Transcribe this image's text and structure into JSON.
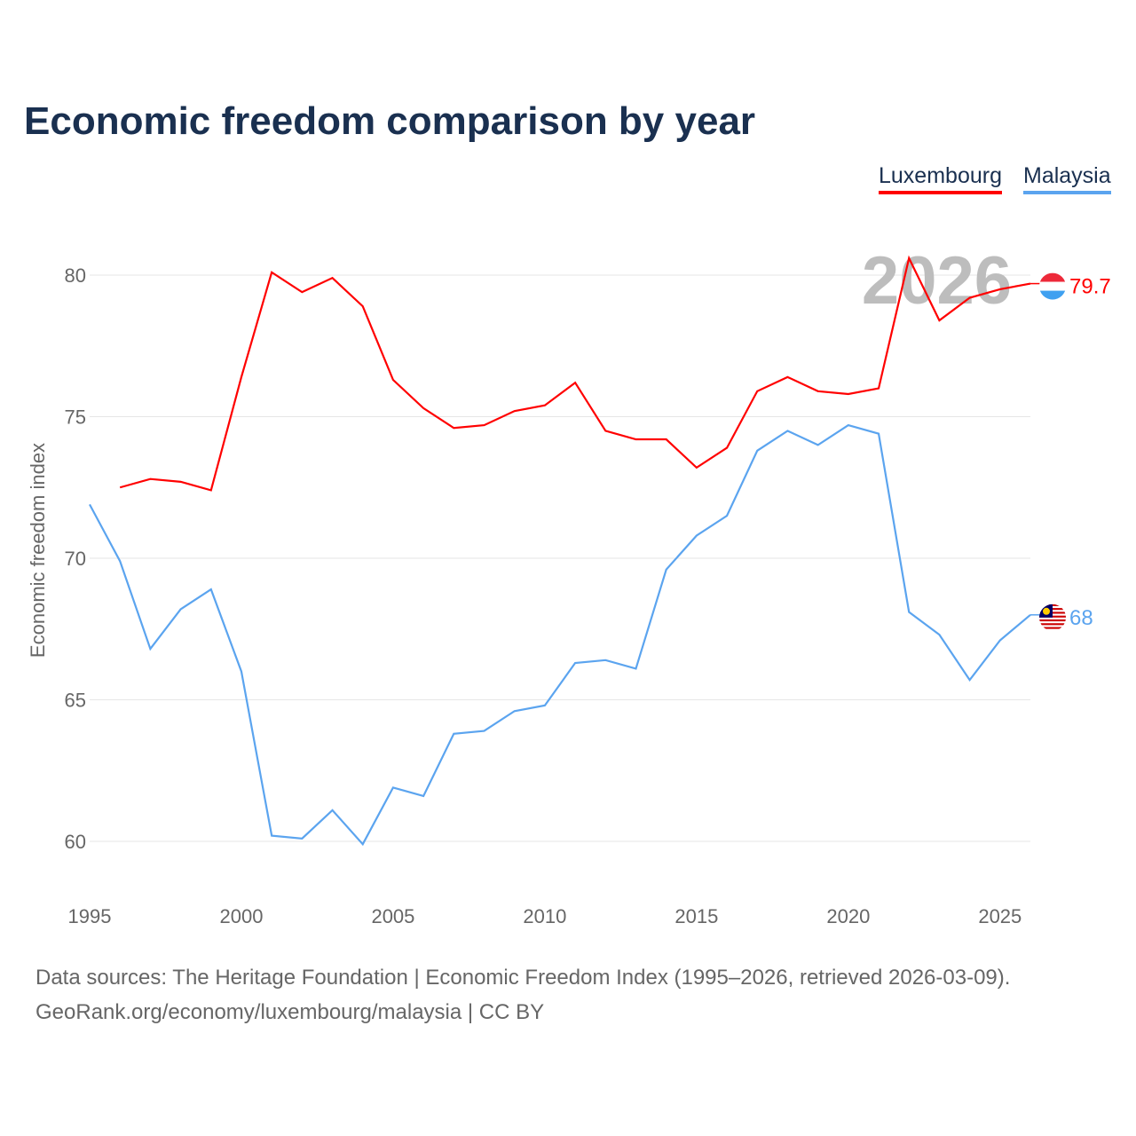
{
  "chart_data": {
    "type": "line",
    "title": "Economic freedom comparison by year",
    "ylabel": "Economic freedom index",
    "xlabel": "",
    "ylim": [
      58,
      82.5
    ],
    "xlim": [
      1995,
      2026
    ],
    "yticks": [
      60,
      65,
      70,
      75,
      80
    ],
    "xticks": [
      1995,
      2000,
      2005,
      2010,
      2015,
      2020,
      2025
    ],
    "grid": true,
    "legend_position": "top-right",
    "year_watermark": "2026",
    "series": [
      {
        "name": "Luxembourg",
        "color": "#ff0000",
        "end_label": "79.7",
        "x": [
          1996,
          1997,
          1998,
          1999,
          2000,
          2001,
          2002,
          2003,
          2004,
          2005,
          2006,
          2007,
          2008,
          2009,
          2010,
          2011,
          2012,
          2013,
          2014,
          2015,
          2016,
          2017,
          2018,
          2019,
          2020,
          2021,
          2022,
          2023,
          2024,
          2025,
          2026
        ],
        "values": [
          72.5,
          72.8,
          72.7,
          72.4,
          76.4,
          80.1,
          79.4,
          79.9,
          78.9,
          76.3,
          75.3,
          74.6,
          74.7,
          75.2,
          75.4,
          76.2,
          74.5,
          74.2,
          74.2,
          73.2,
          73.9,
          75.9,
          76.4,
          75.9,
          75.8,
          76.0,
          80.6,
          78.4,
          79.2,
          79.5,
          79.7
        ]
      },
      {
        "name": "Malaysia",
        "color": "#5ba4ef",
        "end_label": "68",
        "x": [
          1995,
          1996,
          1997,
          1998,
          1999,
          2000,
          2001,
          2002,
          2003,
          2004,
          2005,
          2006,
          2007,
          2008,
          2009,
          2010,
          2011,
          2012,
          2013,
          2014,
          2015,
          2016,
          2017,
          2018,
          2019,
          2020,
          2021,
          2022,
          2023,
          2024,
          2025,
          2026
        ],
        "values": [
          71.9,
          69.9,
          66.8,
          68.2,
          68.9,
          66.0,
          60.2,
          60.1,
          61.1,
          59.9,
          61.9,
          61.6,
          63.8,
          63.9,
          64.6,
          64.8,
          66.3,
          66.4,
          66.1,
          69.6,
          70.8,
          71.5,
          73.8,
          74.5,
          74.0,
          74.7,
          74.4,
          68.1,
          67.3,
          65.7,
          67.1,
          68.0
        ]
      }
    ]
  },
  "footer": {
    "line1": "Data sources: The Heritage Foundation | Economic Freedom Index (1995–2026, retrieved 2026-03-09).",
    "line2": "GeoRank.org/economy/luxembourg/malaysia | CC BY"
  }
}
